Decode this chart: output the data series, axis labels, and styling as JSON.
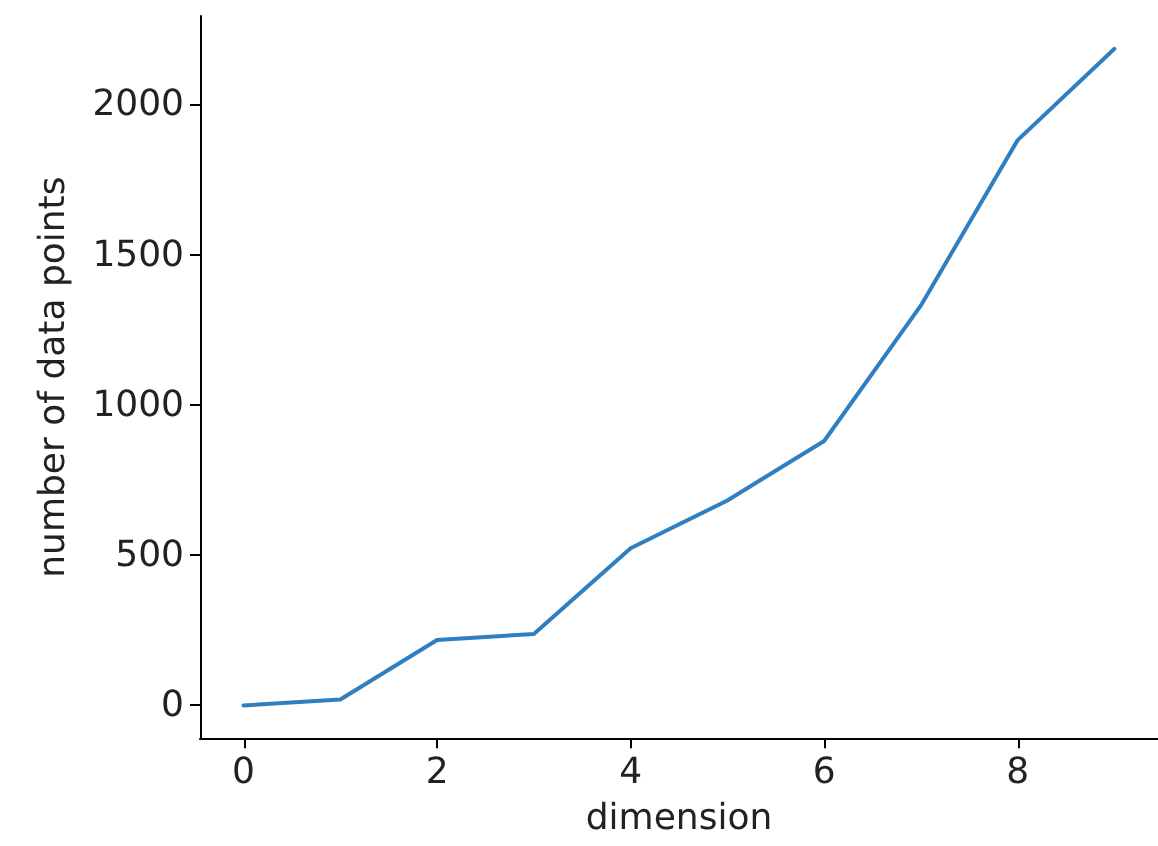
{
  "chart_data": {
    "type": "line",
    "xlabel": "dimension",
    "ylabel": "number of data points",
    "x": [
      0,
      1,
      2,
      3,
      4,
      5,
      6,
      7,
      8,
      9
    ],
    "series": [
      {
        "color": "#2f7fc1",
        "values": [
          0,
          20,
          218,
          238,
          523,
          682,
          880,
          1331,
          1881,
          2185
        ]
      }
    ],
    "xlim": [
      -0.45,
      9.45
    ],
    "xticks": [
      0,
      2,
      4,
      6,
      8
    ],
    "ylim": [
      -109,
      2294
    ],
    "yticks": [
      0,
      500,
      1000,
      1500,
      2000
    ],
    "grid": false,
    "marker": "none",
    "line_style": "solid"
  }
}
